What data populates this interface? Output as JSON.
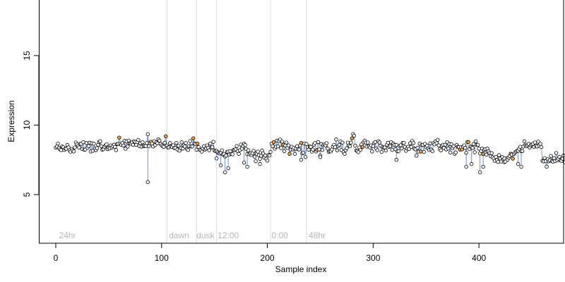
{
  "chart_data": {
    "type": "scatter",
    "title": "",
    "xlabel": "Sample index",
    "ylabel": "Expression",
    "xlim": [
      -16,
      480
    ],
    "ylim": [
      1.5,
      19.0
    ],
    "x_ticks": [
      0,
      100,
      200,
      300,
      400
    ],
    "y_ticks": [
      5,
      10,
      15
    ],
    "grid": false,
    "legend": "none",
    "colors": {
      "point_fill_default": "#ffffff",
      "point_fill_highlight": "#f2a33a",
      "point_stroke": "#000000",
      "connector": "#6d8fd6",
      "divider": "#dcdcdc",
      "period_label": "#b4b4b4"
    },
    "dividers": [
      105,
      133,
      152,
      203,
      237
    ],
    "period_labels": [
      {
        "x": 3,
        "text": "24hr"
      },
      {
        "x": 107,
        "text": "dawn"
      },
      {
        "x": 133,
        "text": "dusk"
      },
      {
        "x": 153,
        "text": "12:00"
      },
      {
        "x": 204,
        "text": "0:00"
      },
      {
        "x": 239,
        "text": "48hr"
      }
    ],
    "spikes": [
      {
        "x": 87,
        "y": 5.9
      },
      {
        "x": 152,
        "y": 7.6
      },
      {
        "x": 156,
        "y": 7.1
      },
      {
        "x": 160,
        "y": 6.6
      },
      {
        "x": 163,
        "y": 6.9
      },
      {
        "x": 178,
        "y": 7.3
      },
      {
        "x": 181,
        "y": 7.0
      },
      {
        "x": 189,
        "y": 7.4
      },
      {
        "x": 193,
        "y": 7.2
      },
      {
        "x": 232,
        "y": 7.5
      },
      {
        "x": 250,
        "y": 7.7
      },
      {
        "x": 322,
        "y": 7.5
      },
      {
        "x": 388,
        "y": 7.0
      },
      {
        "x": 393,
        "y": 7.2
      },
      {
        "x": 401,
        "y": 6.6
      },
      {
        "x": 404,
        "y": 7.0
      },
      {
        "x": 424,
        "y": 7.6
      },
      {
        "x": 437,
        "y": 7.2
      },
      {
        "x": 440,
        "y": 7.0
      }
    ],
    "orange_indices": [
      60,
      90,
      104,
      130,
      134,
      206,
      215,
      221,
      232,
      240,
      247,
      280,
      290,
      345,
      380,
      382,
      384,
      390,
      404,
      430,
      432
    ],
    "series": [
      {
        "values": [
          8.38,
          8.46,
          8.67,
          8.36,
          8.25,
          8.2,
          8.46,
          8.41,
          8.21,
          8.31,
          8.3,
          8.57,
          8.4,
          8.2,
          8.09,
          8.29,
          8.18,
          8.1,
          8.39,
          8.75,
          8.62,
          8.49,
          8.39,
          8.65,
          8.65,
          8.28,
          8.77,
          8.23,
          8.24,
          8.71,
          8.37,
          8.49,
          8.73,
          8.1,
          8.69,
          8.15,
          8.66,
          8.31,
          8.2,
          8.34,
          8.59,
          8.79,
          8.84,
          8.48,
          8.23,
          8.26,
          8.43,
          8.55,
          8.61,
          8.27,
          8.38,
          8.32,
          8.54,
          8.39,
          8.48,
          8.59,
          8.43,
          8.2,
          8.64,
          8.65,
          9.1,
          8.65,
          8.58,
          8.71,
          8.53,
          8.87,
          8.3,
          8.83,
          8.46,
          8.89,
          8.68,
          8.66,
          8.76,
          8.58,
          8.84,
          8.79,
          8.58,
          8.78,
          8.93,
          8.49,
          8.7,
          8.45,
          8.77,
          8.49,
          8.49,
          8.49,
          8.71,
          9.35,
          8.49,
          8.71,
          8.8,
          8.67,
          8.46,
          8.84,
          8.56,
          8.76,
          8.69,
          8.98,
          8.88,
          8.66,
          8.55,
          8.49,
          8.43,
          8.73,
          9.2,
          8.51,
          8.39,
          8.4,
          8.71,
          8.46,
          8.43,
          8.55,
          8.35,
          8.36,
          8.72,
          8.24,
          8.51,
          8.16,
          8.34,
          8.76,
          8.31,
          8.54,
          8.46,
          8.71,
          8.28,
          8.21,
          8.48,
          8.85,
          8.46,
          8.46,
          9.05,
          8.69,
          8.64,
          8.22,
          8.67,
          8.42,
          8.23,
          8.19,
          8.09,
          8.31,
          8.48,
          8.24,
          8.31,
          8.54,
          8.36,
          8.19,
          8.67,
          8.39,
          8.41,
          8.8,
          8.17,
          8.12,
          8.15,
          8.05,
          7.98,
          7.95,
          8.02,
          8.18,
          7.88,
          7.92,
          7.74,
          7.81,
          8.07,
          8.09,
          7.88,
          8.12,
          7.92,
          7.9,
          8.21,
          8.2,
          8.26,
          8.49,
          8.13,
          7.93,
          8.19,
          8.6,
          8.3,
          8.5,
          8.66,
          8.57,
          8.28,
          7.91,
          8.19,
          7.9,
          7.97,
          7.85,
          7.97,
          8.15,
          7.73,
          7.96,
          7.92,
          8.09,
          7.84,
          7.57,
          7.79,
          8.17,
          7.96,
          7.66,
          7.81,
          7.57,
          7.44,
          7.85,
          7.81,
          8.07,
          8.66,
          8.48,
          8.77,
          8.3,
          8.44,
          8.88,
          8.47,
          8.85,
          8.96,
          8.35,
          8.81,
          8.59,
          8.12,
          8.53,
          8.75,
          8.36,
          8.54,
          7.93,
          8.24,
          8.44,
          8.25,
          8.35,
          7.93,
          8.3,
          8.48,
          8.27,
          8.24,
          8.54,
          8.71,
          7.96,
          8.01,
          8.67,
          7.7,
          8.64,
          8.43,
          8.23,
          8.46,
          8.43,
          8.09,
          8.24,
          8.59,
          8.71,
          8.1,
          8.21,
          8.78,
          8.25,
          7.8,
          8.64,
          8.21,
          8.56,
          8.61,
          8.54,
          8.7,
          8.31,
          8.07,
          8.13,
          8.11,
          8.24,
          8.45,
          8.58,
          8.42,
          8.97,
          8.18,
          8.49,
          8.58,
          8.82,
          8.2,
          8.74,
          8.06,
          7.93,
          8.19,
          8.34,
          8.74,
          8.54,
          8.47,
          8.74,
          9.05,
          9.35,
          9.23,
          8.52,
          8.17,
          8.13,
          8.05,
          8.39,
          8.22,
          8.61,
          8.43,
          8.76,
          8.88,
          8.74,
          8.45,
          8.75,
          8.47,
          8.39,
          8.54,
          8.1,
          8.49,
          8.71,
          8.78,
          8.31,
          8.19,
          8.84,
          8.75,
          8.52,
          8.07,
          8.43,
          8.38,
          8.39,
          8.17,
          8.58,
          8.73,
          8.43,
          8.48,
          8.77,
          8.22,
          8.66,
          8.57,
          8.26,
          8.57,
          8.11,
          8.12,
          8.51,
          8.55,
          8.32,
          8.72,
          8.72,
          8.42,
          8.15,
          8.32,
          8.44,
          8.28,
          8.69,
          8.43,
          8.86,
          8.72,
          8.31,
          8.26,
          7.8,
          8.36,
          8.09,
          8.66,
          8.1,
          8.57,
          8.58,
          8.07,
          8.65,
          8.42,
          8.52,
          8.31,
          8.21,
          8.69,
          8.24,
          8.12,
          8.7,
          8.61,
          8.83,
          8.7,
          8.94,
          8.54,
          8.28,
          8.18,
          8.51,
          8.58,
          8.35,
          8.59,
          8.25,
          8.77,
          8.31,
          8.64,
          8.03,
          8.62,
          8.36,
          8.48,
          7.93,
          8.03,
          8.57,
          8.44,
          8.42,
          8.24,
          8.4,
          8.25,
          8.45,
          8.54,
          8.36,
          8.01,
          8.78,
          8.78,
          8.28,
          8.46,
          8.41,
          8.36,
          8.64,
          8.04,
          8.83,
          8.58,
          8.58,
          8.3,
          7.96,
          8.14,
          8.31,
          7.92,
          8.21,
          8.27,
          7.88,
          8.31,
          8.12,
          7.99,
          7.76,
          7.98,
          7.69,
          7.59,
          7.43,
          7.71,
          7.48,
          7.35,
          7.84,
          7.6,
          7.38,
          7.7,
          7.54,
          7.33,
          7.38,
          7.6,
          7.51,
          7.66,
          7.78,
          7.94,
          7.88,
          7.59,
          7.92,
          8.01,
          8.09,
          8.15,
          8.15,
          8.29,
          8.44,
          8.12,
          8.13,
          8.45,
          8.83,
          8.54,
          8.49,
          8.56,
          8.64,
          8.39,
          8.53,
          8.61,
          8.65,
          8.43,
          8.75,
          8.51,
          8.46,
          8.81,
          8.52,
          8.65,
          8.42,
          7.43,
          7.39,
          7.63,
          7.4,
          7.01,
          7.54,
          7.4,
          7.48,
          7.78,
          7.41,
          7.37,
          7.62,
          7.41,
          7.99,
          7.47,
          7.58,
          7.72,
          7.46,
          7.43,
          7.58,
          7.81,
          7.33
        ]
      }
    ]
  }
}
